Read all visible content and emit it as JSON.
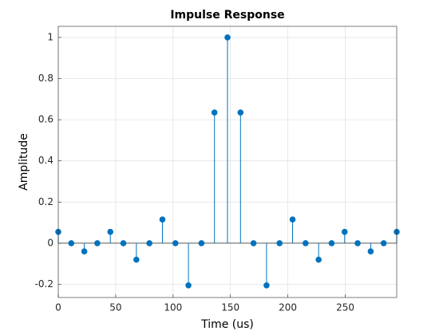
{
  "chart_data": {
    "type": "stem",
    "title": "Impulse Response",
    "x_label": "Time (us)",
    "y_label": "Amplitude",
    "x": [
      0,
      11.34,
      22.68,
      34.02,
      45.36,
      56.7,
      68.04,
      79.38,
      90.72,
      102.06,
      113.4,
      124.74,
      136.08,
      147.42,
      158.76,
      170.1,
      181.44,
      192.78,
      204.12,
      215.46,
      226.8,
      238.14,
      249.48,
      260.82,
      272.16,
      283.5,
      294.84
    ],
    "values": [
      0.055,
      0,
      -0.04,
      0,
      0.055,
      0,
      -0.08,
      0,
      0.115,
      0,
      -0.205,
      0,
      0.635,
      1,
      0.635,
      0,
      -0.205,
      0,
      0.115,
      0,
      -0.08,
      0,
      0.055,
      0,
      -0.04,
      0,
      0.055
    ],
    "color": "#0072bd",
    "xlim": [
      0,
      294.84
    ],
    "ylim": [
      -0.264,
      1.054
    ],
    "xticks": [
      0,
      50,
      100,
      150,
      200,
      250
    ],
    "yticks": [
      -0.2,
      0,
      0.2,
      0.4,
      0.6,
      0.8,
      1
    ],
    "grid": true
  }
}
